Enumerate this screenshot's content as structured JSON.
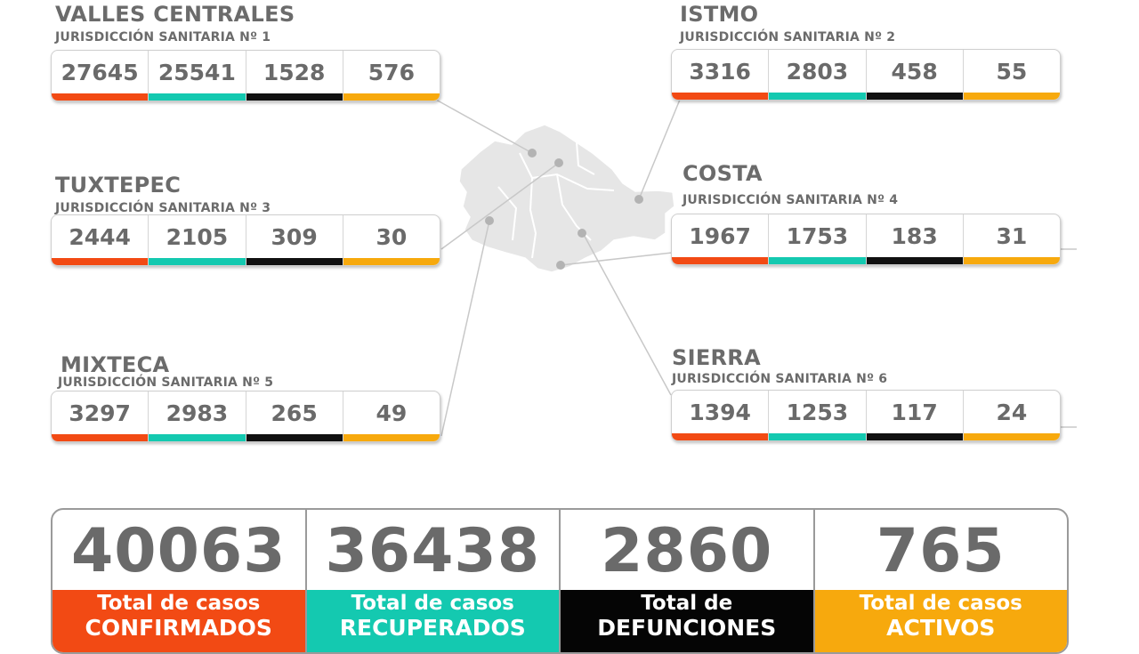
{
  "regions": {
    "valles": {
      "name": "VALLES CENTRALES",
      "jurisdiction": "JURISDICCIÓN SANITARIA Nº 1",
      "values": [
        "27645",
        "25541",
        "1528",
        "576"
      ]
    },
    "istmo": {
      "name": "ISTMO",
      "jurisdiction": "JURISDICCIÓN SANITARIA Nº 2",
      "values": [
        "3316",
        "2803",
        "458",
        "55"
      ]
    },
    "tuxtepec": {
      "name": "TUXTEPEC",
      "jurisdiction": "JURISDICCIÓN SANITARIA Nº 3",
      "values": [
        "2444",
        "2105",
        "309",
        "30"
      ]
    },
    "costa": {
      "name": "COSTA",
      "jurisdiction": "JURISDICCIÓN SANITARIA Nº 4",
      "values": [
        "1967",
        "1753",
        "183",
        "31"
      ]
    },
    "mixteca": {
      "name": "MIXTECA",
      "jurisdiction": "JURISDICCIÓN SANITARIA Nº 5",
      "values": [
        "3297",
        "2983",
        "265",
        "49"
      ]
    },
    "sierra": {
      "name": "SIERRA",
      "jurisdiction": "JURISDICCIÓN SANITARIA Nº 6",
      "values": [
        "1394",
        "1253",
        "117",
        "24"
      ]
    }
  },
  "totals": [
    {
      "value": "40063",
      "line1": "Total de casos",
      "line2": "CONFIRMADOS"
    },
    {
      "value": "36438",
      "line1": "Total de casos",
      "line2": "RECUPERADOS"
    },
    {
      "value": "2860",
      "line1": "Total de",
      "line2": "DEFUNCIONES"
    },
    {
      "value": "765",
      "line1": "Total de casos",
      "line2": "ACTIVOS"
    }
  ],
  "colors": {
    "confirmed": "#f24a14",
    "recovered": "#14c9b0",
    "deaths": "#111111",
    "active": "#f7a90d",
    "text": "#6a6a6a",
    "map": "#e6e6e6"
  },
  "icons": {
    "map": "oaxaca-map-graphic"
  }
}
